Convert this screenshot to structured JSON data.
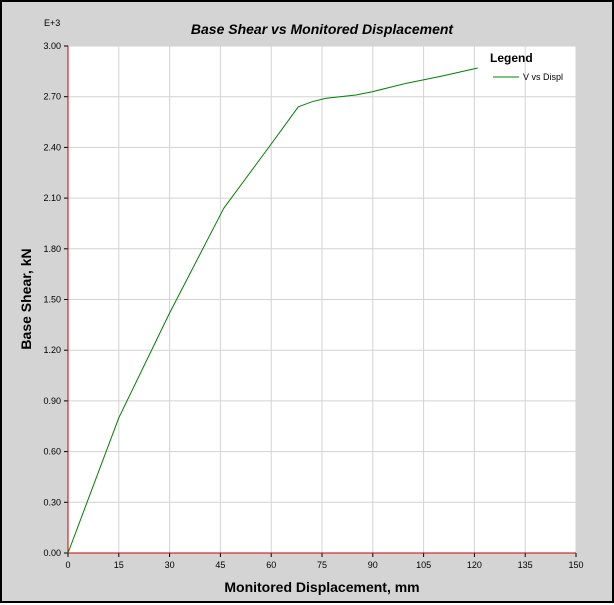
{
  "chart_data": {
    "type": "line",
    "title": "Base Shear vs Monitored Displacement",
    "xlabel": "Monitored Displacement, mm",
    "ylabel": "Base Shear, kN",
    "y_multiplier_label": "E+3",
    "xlim": [
      0,
      150
    ],
    "ylim": [
      0,
      3.0
    ],
    "x_ticks": [
      "0",
      "15",
      "30",
      "45",
      "60",
      "75",
      "90",
      "105",
      "120",
      "135",
      "150"
    ],
    "y_ticks": [
      "0.00",
      "0.30",
      "0.60",
      "0.90",
      "1.20",
      "1.50",
      "1.80",
      "2.10",
      "2.40",
      "2.70",
      "3.00"
    ],
    "grid": true,
    "legend": {
      "title": "Legend",
      "position": "top-right"
    },
    "series": [
      {
        "name": "V vs Displ",
        "color": "#008000",
        "x": [
          0,
          15,
          30,
          46,
          60,
          68,
          72,
          76,
          85,
          90,
          100,
          110,
          121
        ],
        "y": [
          0,
          0.8,
          1.42,
          2.04,
          2.42,
          2.64,
          2.67,
          2.69,
          2.71,
          2.73,
          2.78,
          2.82,
          2.87
        ]
      }
    ]
  },
  "colors": {
    "frame_background": "#d4d4d4",
    "plot_background": "#ffffff",
    "grid": "#d3d3d3",
    "axis": "#cc0000",
    "series": "#008000"
  }
}
